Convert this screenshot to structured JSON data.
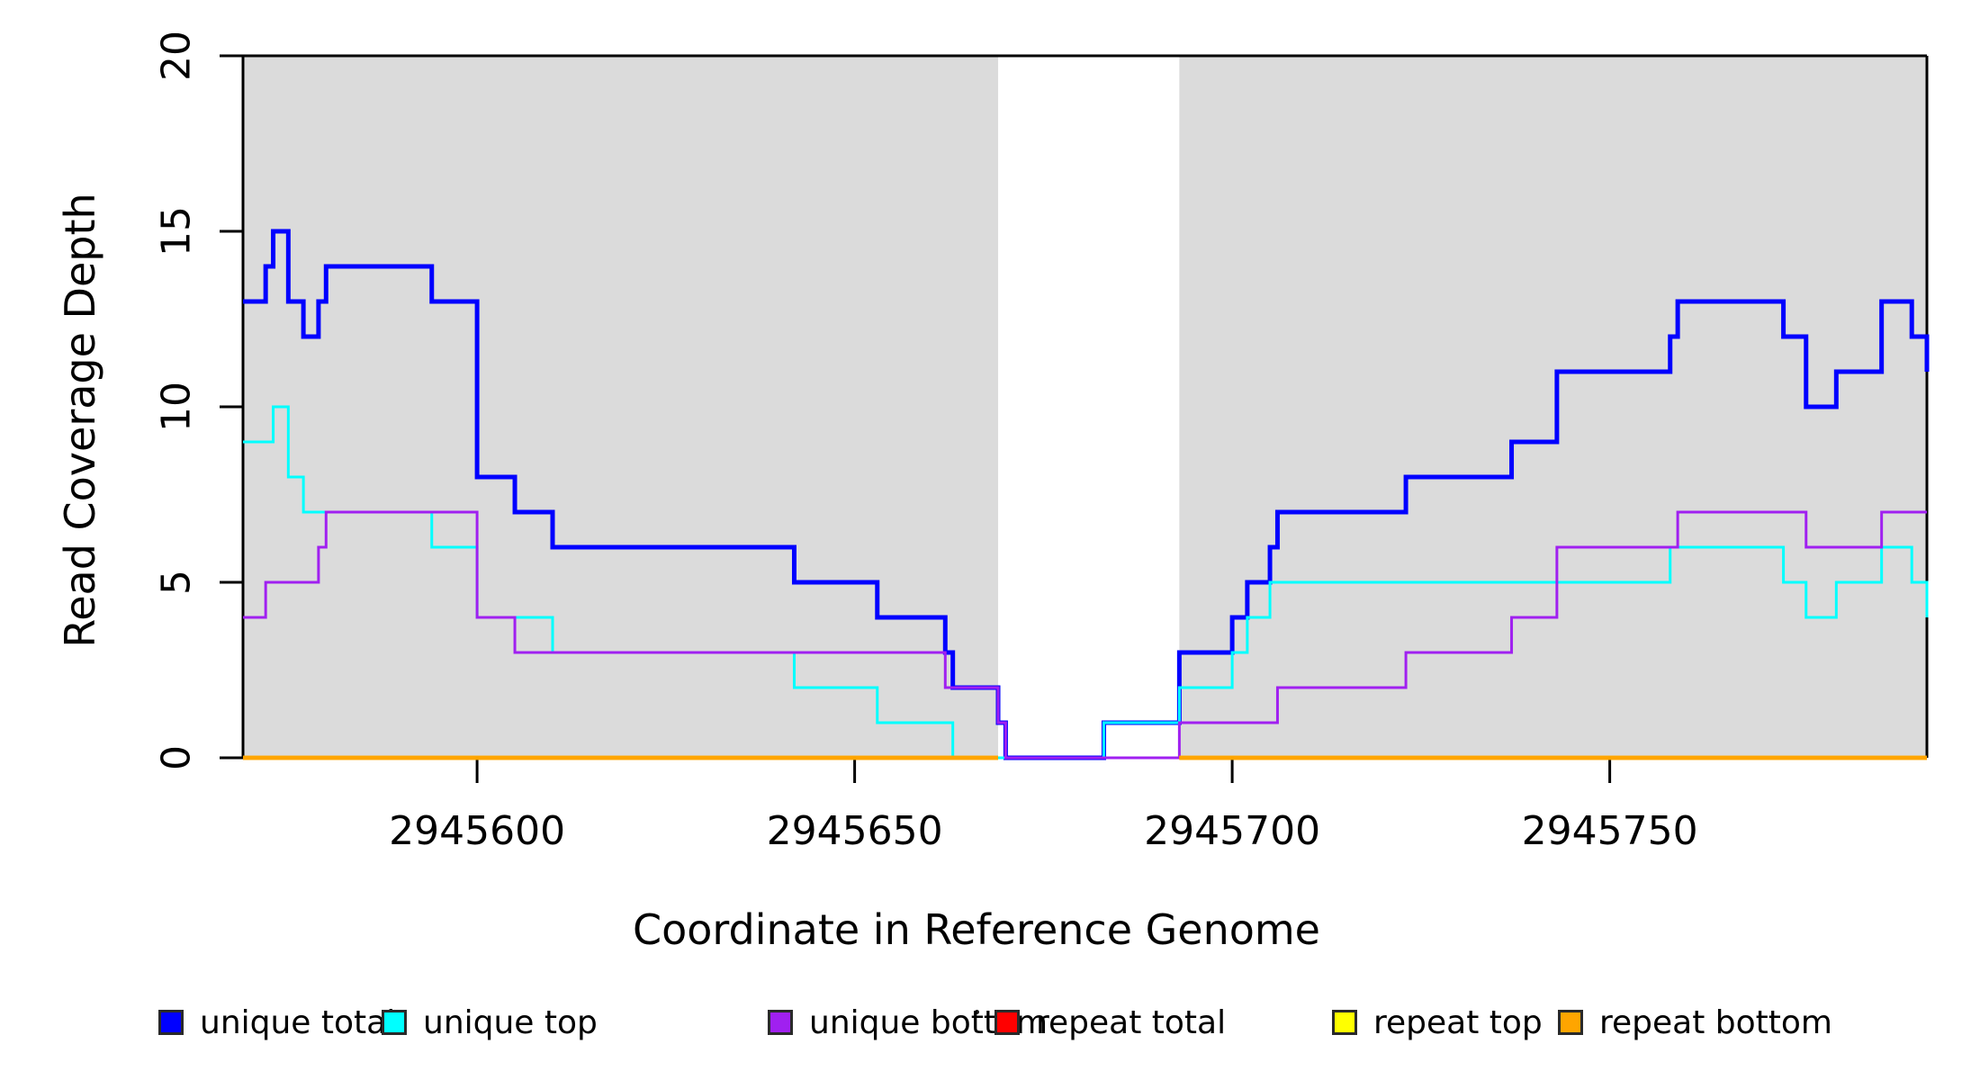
{
  "chart_data": {
    "type": "line",
    "subtype": "step",
    "title": "",
    "xlabel": "Coordinate in Reference Genome",
    "ylabel": "Read Coverage Depth",
    "xlim": [
      2945569,
      2945792
    ],
    "ylim": [
      0,
      20
    ],
    "x_ticks": [
      2945600,
      2945650,
      2945700,
      2945750
    ],
    "y_ticks": [
      0,
      5,
      10,
      15,
      20
    ],
    "grid": false,
    "legend_position": "bottom",
    "shade_color": "#DBDBDB",
    "shaded_regions": [
      [
        2945569,
        2945669
      ],
      [
        2945693,
        2945792
      ]
    ],
    "series": [
      {
        "name": "unique total",
        "color": "#0000FF",
        "points": [
          [
            2945569,
            13
          ],
          [
            2945572,
            14
          ],
          [
            2945573,
            15
          ],
          [
            2945575,
            13
          ],
          [
            2945577,
            12
          ],
          [
            2945579,
            13
          ],
          [
            2945580,
            14
          ],
          [
            2945594,
            13
          ],
          [
            2945600,
            8
          ],
          [
            2945605,
            7
          ],
          [
            2945610,
            6
          ],
          [
            2945642,
            5
          ],
          [
            2945653,
            4
          ],
          [
            2945662,
            3
          ],
          [
            2945663,
            2
          ],
          [
            2945669,
            1
          ],
          [
            2945670,
            0
          ],
          [
            2945683,
            1
          ],
          [
            2945693,
            3
          ],
          [
            2945700,
            4
          ],
          [
            2945702,
            5
          ],
          [
            2945705,
            6
          ],
          [
            2945706,
            7
          ],
          [
            2945723,
            8
          ],
          [
            2945737,
            9
          ],
          [
            2945743,
            11
          ],
          [
            2945758,
            12
          ],
          [
            2945759,
            13
          ],
          [
            2945773,
            12
          ],
          [
            2945776,
            10
          ],
          [
            2945780,
            11
          ],
          [
            2945786,
            13
          ],
          [
            2945790,
            12
          ],
          [
            2945792,
            11
          ]
        ]
      },
      {
        "name": "unique top",
        "color": "#00FFFF",
        "points": [
          [
            2945569,
            9
          ],
          [
            2945573,
            10
          ],
          [
            2945575,
            8
          ],
          [
            2945577,
            7
          ],
          [
            2945594,
            6
          ],
          [
            2945600,
            4
          ],
          [
            2945610,
            3
          ],
          [
            2945642,
            2
          ],
          [
            2945653,
            1
          ],
          [
            2945663,
            0
          ],
          [
            2945683,
            1
          ],
          [
            2945693,
            2
          ],
          [
            2945700,
            3
          ],
          [
            2945702,
            4
          ],
          [
            2945705,
            5
          ],
          [
            2945758,
            6
          ],
          [
            2945773,
            5
          ],
          [
            2945776,
            4
          ],
          [
            2945780,
            5
          ],
          [
            2945786,
            6
          ],
          [
            2945790,
            5
          ],
          [
            2945792,
            4
          ]
        ]
      },
      {
        "name": "unique bottom",
        "color": "#A020F0",
        "points": [
          [
            2945569,
            4
          ],
          [
            2945572,
            5
          ],
          [
            2945579,
            6
          ],
          [
            2945580,
            7
          ],
          [
            2945600,
            4
          ],
          [
            2945605,
            3
          ],
          [
            2945662,
            2
          ],
          [
            2945669,
            1
          ],
          [
            2945670,
            0
          ],
          [
            2945693,
            1
          ],
          [
            2945706,
            2
          ],
          [
            2945723,
            3
          ],
          [
            2945737,
            4
          ],
          [
            2945743,
            6
          ],
          [
            2945759,
            7
          ],
          [
            2945776,
            6
          ],
          [
            2945786,
            7
          ],
          [
            2945792,
            7
          ]
        ]
      },
      {
        "name": "repeat total",
        "color": "#FF0000",
        "segments": [
          [
            [
              2945569,
              0
            ],
            [
              2945669,
              0
            ]
          ],
          [
            [
              2945693,
              0
            ],
            [
              2945792,
              0
            ]
          ]
        ]
      },
      {
        "name": "repeat top",
        "color": "#FFFF00",
        "segments": [
          [
            [
              2945569,
              0
            ],
            [
              2945669,
              0
            ]
          ],
          [
            [
              2945693,
              0
            ],
            [
              2945792,
              0
            ]
          ]
        ]
      },
      {
        "name": "repeat bottom",
        "color": "#FFA500",
        "segments": [
          [
            [
              2945569,
              0
            ],
            [
              2945669,
              0
            ]
          ],
          [
            [
              2945693,
              0
            ],
            [
              2945792,
              0
            ]
          ]
        ]
      }
    ]
  },
  "legend": {
    "items": [
      {
        "label": "unique total",
        "color": "#0000FF"
      },
      {
        "label": "unique top",
        "color": "#00FFFF"
      },
      {
        "label": "unique bottom",
        "color": "#A020F0"
      },
      {
        "label": "repeat total",
        "color": "#FF0000"
      },
      {
        "label": "repeat top",
        "color": "#FFFF00"
      },
      {
        "label": "repeat bottom",
        "color": "#FFA500"
      }
    ]
  }
}
